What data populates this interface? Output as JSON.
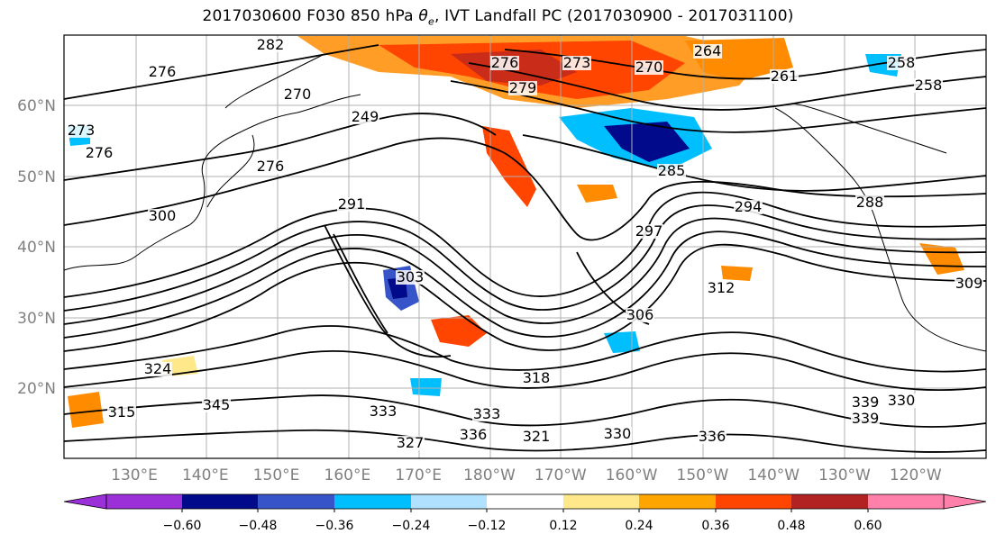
{
  "title_main": "2017030600 F030 850 hPa",
  "title_symbol": "θ",
  "title_sub": "e",
  "title_rest": ", IVT Landfall PC (2017030900 - 2017031100)",
  "map": {
    "lat_ticks": [
      "60°N",
      "50°N",
      "40°N",
      "30°N",
      "20°N"
    ],
    "lon_ticks": [
      "130°E",
      "140°E",
      "150°E",
      "160°E",
      "170°E",
      "180°W",
      "170°W",
      "160°W",
      "150°W",
      "140°W",
      "130°W",
      "120°W"
    ],
    "contour_labels": [
      "282",
      "276",
      "264",
      "270",
      "273",
      "276",
      "279",
      "261",
      "258",
      "258",
      "273",
      "276",
      "276",
      "249",
      "270",
      "285",
      "288",
      "291",
      "294",
      "297",
      "303",
      "318",
      "312",
      "306",
      "333",
      "336",
      "339",
      "327",
      "330",
      "321",
      "324",
      "315",
      "345",
      "339",
      "330",
      "333",
      "336",
      "300",
      "309"
    ]
  },
  "colorbar": {
    "colors": [
      "#9b30d9",
      "#000a8b",
      "#3755c8",
      "#00bfff",
      "#b0e2ff",
      "#ffffff",
      "#ffe88a",
      "#ffa500",
      "#ff4500",
      "#b22222",
      "#ff80aa"
    ],
    "tick_labels": [
      "−0.60",
      "−0.48",
      "−0.36",
      "−0.24",
      "−0.12",
      "0.12",
      "0.24",
      "0.36",
      "0.48",
      "0.60"
    ]
  }
}
